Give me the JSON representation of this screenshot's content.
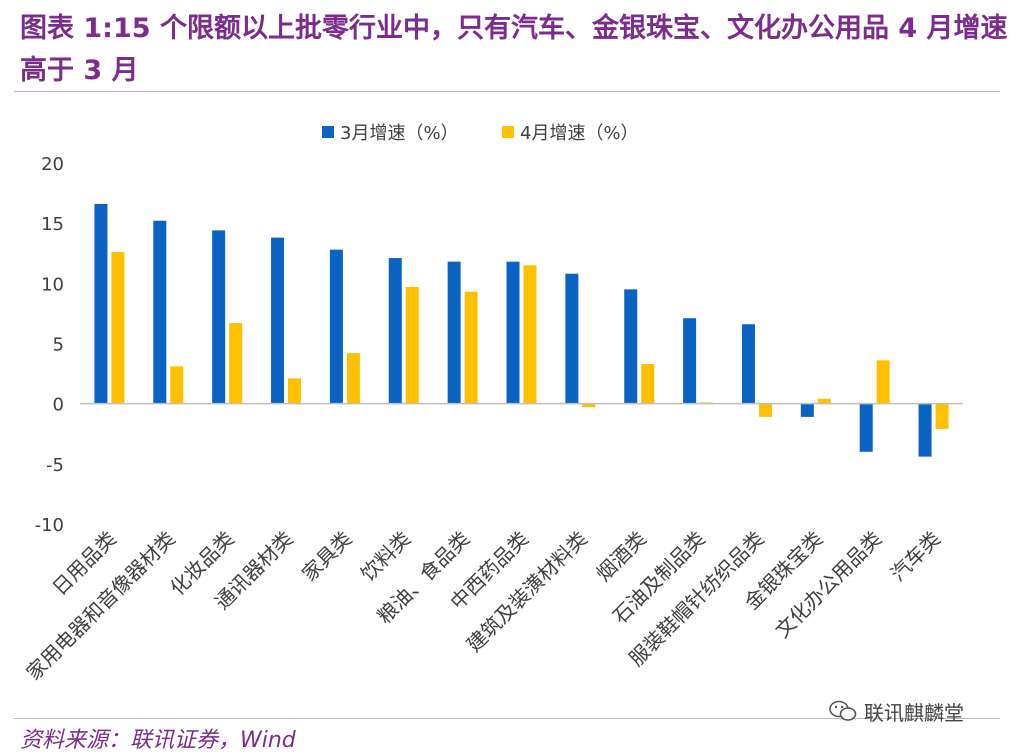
{
  "title": "图表 1:15 个限额以上批零行业中，只有汽车、金银珠宝、文化办公用品 4 月增速高于 3 月",
  "source": "资料来源：联讯证券，Wind",
  "watermark": "联讯麒麟堂",
  "colors": {
    "title": "#7b2c8c",
    "series1": "#0a63c2",
    "series2": "#ffc000",
    "axis": "#bfbfbf",
    "text": "#404040"
  },
  "chart_data": {
    "type": "bar",
    "title": "",
    "xlabel": "",
    "ylabel": "",
    "ylim": [
      -10,
      20
    ],
    "yticks": [
      20,
      15,
      10,
      5,
      0,
      -5,
      -10
    ],
    "grid": false,
    "legend_position": "top-center",
    "categories": [
      "日用品类",
      "家用电器和音像器材类",
      "化妆品类",
      "通讯器材类",
      "家具类",
      "饮料类",
      "粮油、食品类",
      "中西药品类",
      "建筑及装潢材料类",
      "烟酒类",
      "石油及制品类",
      "服装鞋帽针纺织品类",
      "金银珠宝类",
      "文化办公用品类",
      "汽车类"
    ],
    "series": [
      {
        "name": "3月增速（%）",
        "values": [
          16.6,
          15.2,
          14.4,
          13.8,
          12.8,
          12.1,
          11.8,
          11.8,
          10.8,
          9.5,
          7.1,
          6.6,
          -1.1,
          -4.0,
          -4.4
        ]
      },
      {
        "name": "4月增速（%）",
        "values": [
          12.6,
          3.1,
          6.7,
          2.1,
          4.2,
          9.7,
          9.3,
          11.5,
          -0.3,
          3.3,
          0.1,
          -1.1,
          0.4,
          3.6,
          -2.1
        ]
      }
    ]
  }
}
